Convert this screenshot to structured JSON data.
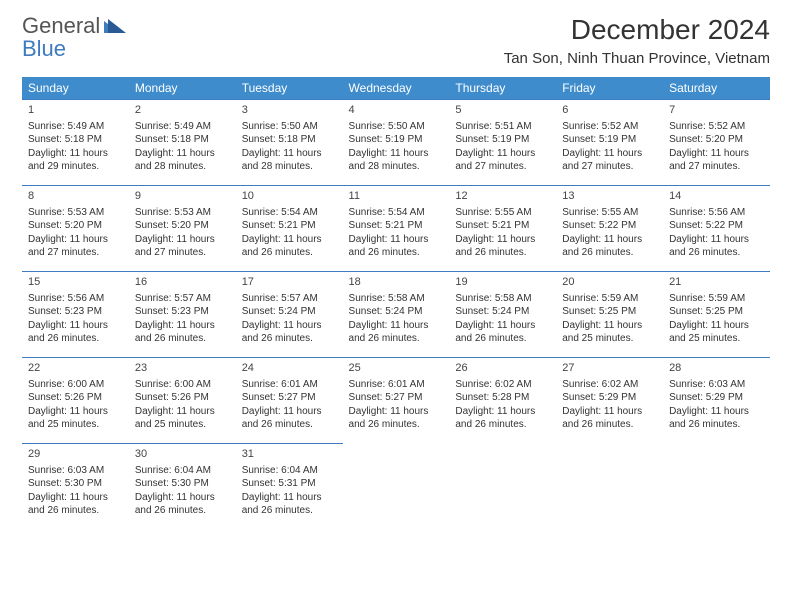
{
  "logo": {
    "text1": "General",
    "text2": "Blue"
  },
  "title": "December 2024",
  "location": "Tan Son, Ninh Thuan Province, Vietnam",
  "colors": {
    "header_bg": "#3e8ccc",
    "header_text": "#ffffff",
    "cell_border": "#3e7bbf",
    "logo_blue": "#3e7bbf",
    "logo_gray": "#666666",
    "text": "#333333"
  },
  "day_headers": [
    "Sunday",
    "Monday",
    "Tuesday",
    "Wednesday",
    "Thursday",
    "Friday",
    "Saturday"
  ],
  "col_width_pct": 14.28,
  "header_fontsize": 12,
  "daynum_fontsize": 11,
  "cell_fontsize": 10,
  "rows": [
    [
      {
        "num": "1",
        "sunrise": "5:49 AM",
        "sunset": "5:18 PM",
        "daylight": "11 hours and 29 minutes."
      },
      {
        "num": "2",
        "sunrise": "5:49 AM",
        "sunset": "5:18 PM",
        "daylight": "11 hours and 28 minutes."
      },
      {
        "num": "3",
        "sunrise": "5:50 AM",
        "sunset": "5:18 PM",
        "daylight": "11 hours and 28 minutes."
      },
      {
        "num": "4",
        "sunrise": "5:50 AM",
        "sunset": "5:19 PM",
        "daylight": "11 hours and 28 minutes."
      },
      {
        "num": "5",
        "sunrise": "5:51 AM",
        "sunset": "5:19 PM",
        "daylight": "11 hours and 27 minutes."
      },
      {
        "num": "6",
        "sunrise": "5:52 AM",
        "sunset": "5:19 PM",
        "daylight": "11 hours and 27 minutes."
      },
      {
        "num": "7",
        "sunrise": "5:52 AM",
        "sunset": "5:20 PM",
        "daylight": "11 hours and 27 minutes."
      }
    ],
    [
      {
        "num": "8",
        "sunrise": "5:53 AM",
        "sunset": "5:20 PM",
        "daylight": "11 hours and 27 minutes."
      },
      {
        "num": "9",
        "sunrise": "5:53 AM",
        "sunset": "5:20 PM",
        "daylight": "11 hours and 27 minutes."
      },
      {
        "num": "10",
        "sunrise": "5:54 AM",
        "sunset": "5:21 PM",
        "daylight": "11 hours and 26 minutes."
      },
      {
        "num": "11",
        "sunrise": "5:54 AM",
        "sunset": "5:21 PM",
        "daylight": "11 hours and 26 minutes."
      },
      {
        "num": "12",
        "sunrise": "5:55 AM",
        "sunset": "5:21 PM",
        "daylight": "11 hours and 26 minutes."
      },
      {
        "num": "13",
        "sunrise": "5:55 AM",
        "sunset": "5:22 PM",
        "daylight": "11 hours and 26 minutes."
      },
      {
        "num": "14",
        "sunrise": "5:56 AM",
        "sunset": "5:22 PM",
        "daylight": "11 hours and 26 minutes."
      }
    ],
    [
      {
        "num": "15",
        "sunrise": "5:56 AM",
        "sunset": "5:23 PM",
        "daylight": "11 hours and 26 minutes."
      },
      {
        "num": "16",
        "sunrise": "5:57 AM",
        "sunset": "5:23 PM",
        "daylight": "11 hours and 26 minutes."
      },
      {
        "num": "17",
        "sunrise": "5:57 AM",
        "sunset": "5:24 PM",
        "daylight": "11 hours and 26 minutes."
      },
      {
        "num": "18",
        "sunrise": "5:58 AM",
        "sunset": "5:24 PM",
        "daylight": "11 hours and 26 minutes."
      },
      {
        "num": "19",
        "sunrise": "5:58 AM",
        "sunset": "5:24 PM",
        "daylight": "11 hours and 26 minutes."
      },
      {
        "num": "20",
        "sunrise": "5:59 AM",
        "sunset": "5:25 PM",
        "daylight": "11 hours and 25 minutes."
      },
      {
        "num": "21",
        "sunrise": "5:59 AM",
        "sunset": "5:25 PM",
        "daylight": "11 hours and 25 minutes."
      }
    ],
    [
      {
        "num": "22",
        "sunrise": "6:00 AM",
        "sunset": "5:26 PM",
        "daylight": "11 hours and 25 minutes."
      },
      {
        "num": "23",
        "sunrise": "6:00 AM",
        "sunset": "5:26 PM",
        "daylight": "11 hours and 25 minutes."
      },
      {
        "num": "24",
        "sunrise": "6:01 AM",
        "sunset": "5:27 PM",
        "daylight": "11 hours and 26 minutes."
      },
      {
        "num": "25",
        "sunrise": "6:01 AM",
        "sunset": "5:27 PM",
        "daylight": "11 hours and 26 minutes."
      },
      {
        "num": "26",
        "sunrise": "6:02 AM",
        "sunset": "5:28 PM",
        "daylight": "11 hours and 26 minutes."
      },
      {
        "num": "27",
        "sunrise": "6:02 AM",
        "sunset": "5:29 PM",
        "daylight": "11 hours and 26 minutes."
      },
      {
        "num": "28",
        "sunrise": "6:03 AM",
        "sunset": "5:29 PM",
        "daylight": "11 hours and 26 minutes."
      }
    ],
    [
      {
        "num": "29",
        "sunrise": "6:03 AM",
        "sunset": "5:30 PM",
        "daylight": "11 hours and 26 minutes."
      },
      {
        "num": "30",
        "sunrise": "6:04 AM",
        "sunset": "5:30 PM",
        "daylight": "11 hours and 26 minutes."
      },
      {
        "num": "31",
        "sunrise": "6:04 AM",
        "sunset": "5:31 PM",
        "daylight": "11 hours and 26 minutes."
      },
      null,
      null,
      null,
      null
    ]
  ],
  "labels": {
    "sunrise": "Sunrise: ",
    "sunset": "Sunset: ",
    "daylight": "Daylight: "
  }
}
